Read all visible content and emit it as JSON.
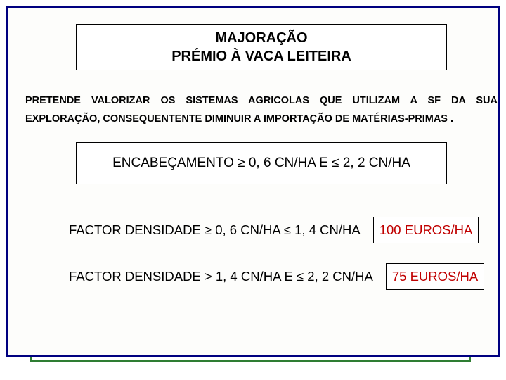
{
  "colors": {
    "outer_border": "#000080",
    "green_accent": "#2e7d32",
    "background": "#fdfdfb",
    "title_text": "#000000",
    "body_text": "#000000",
    "value_text": "#c00000",
    "box_border": "#000000",
    "box_background": "#ffffff"
  },
  "typography": {
    "title_fontsize": 20,
    "title_weight": "bold",
    "intro_fontsize": 14.5,
    "intro_weight": "bold",
    "rule_fontsize": 19,
    "factor_fontsize": 18.5,
    "value_fontsize": 18.5,
    "font_family": "Arial"
  },
  "title": {
    "line1": "MAJORAÇÃO",
    "line2": "PRÉMIO À VACA LEITEIRA"
  },
  "intro": "PRETENDE VALORIZAR OS SISTEMAS AGRICOLAS QUE UTILIZAM A SF DA SUA EXPLORAÇÃO, CONSEQUENTENTE DIMINUIR A IMPORTAÇÃO DE MATÉRIAS-PRIMAS .",
  "rule": "ENCABEÇAMENTO ≥ 0, 6 CN/HA E ≤ 2, 2 CN/HA",
  "rows": [
    {
      "factor": "FACTOR DENSIDADE ≥ 0, 6 CN/HA ≤ 1, 4 CN/HA",
      "value": "100 EUROS/HA"
    },
    {
      "factor": "FACTOR DENSIDADE > 1, 4 CN/HA E ≤ 2, 2 CN/HA",
      "value": "75 EUROS/HA"
    }
  ]
}
